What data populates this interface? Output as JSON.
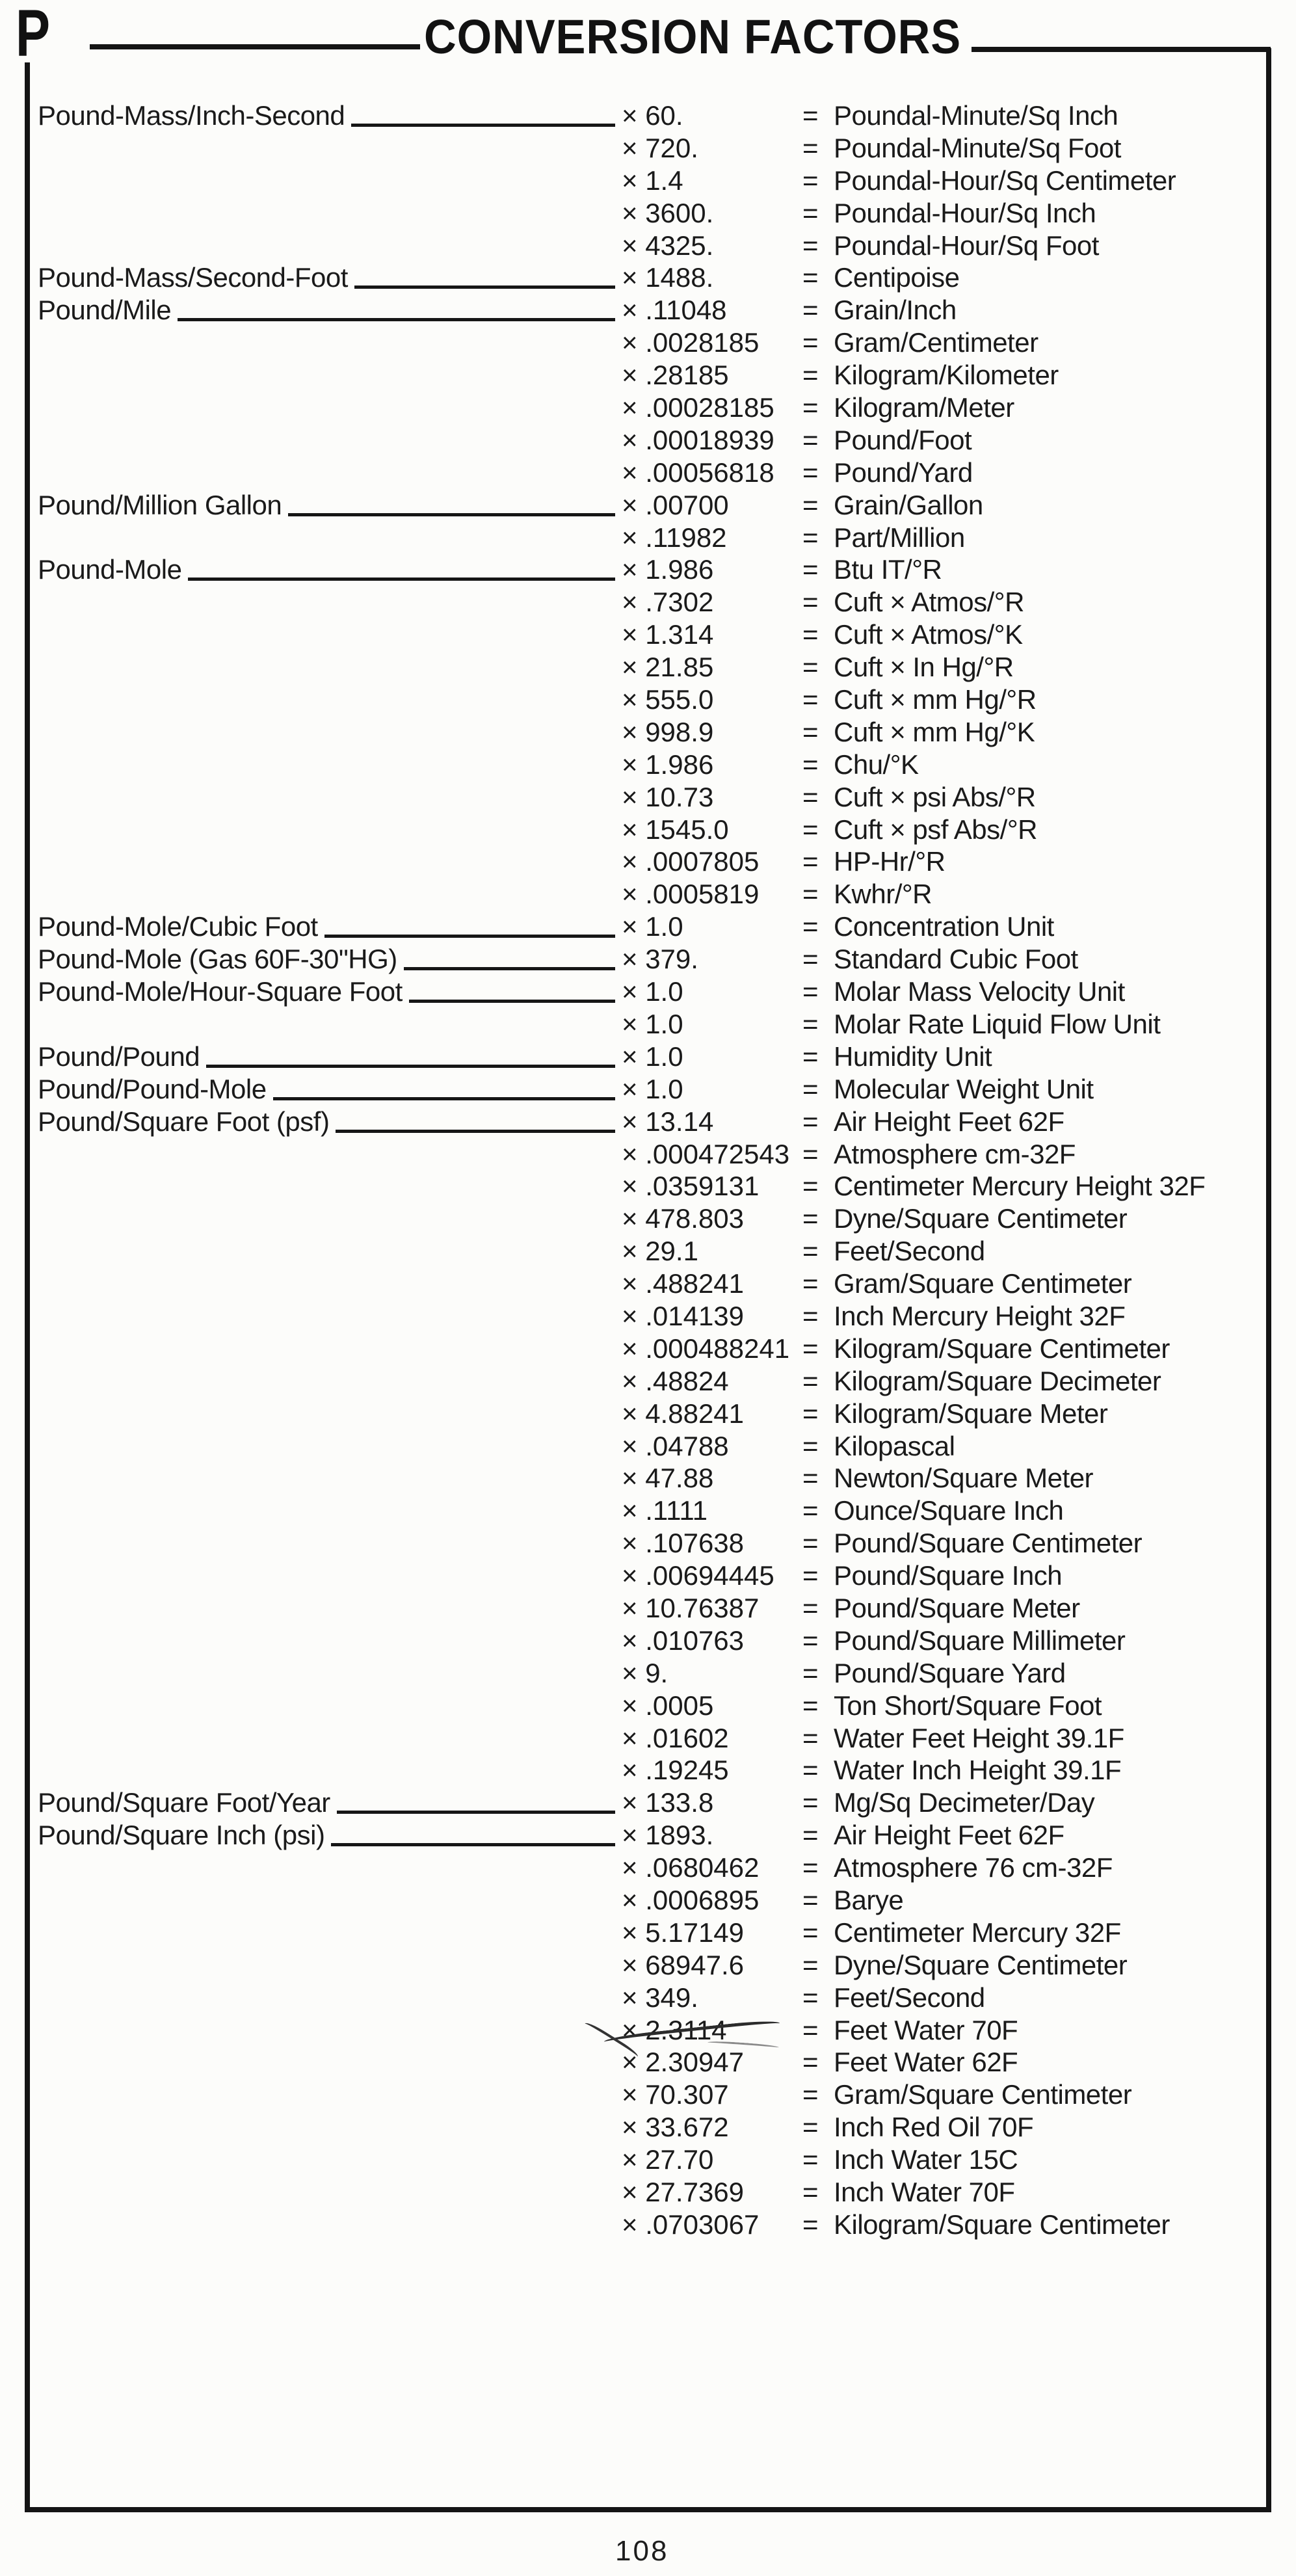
{
  "page": {
    "tab_letter": "P",
    "title": "CONVERSION FACTORS",
    "page_number": "108"
  },
  "colors": {
    "ink": "#1a1a1a",
    "paper": "#fcfcfa"
  },
  "table": {
    "multiply_symbol": "×",
    "equals_symbol": "=",
    "rows": [
      {
        "label": "Pound-Mass/Inch-Second",
        "factor": "60.",
        "result": "Poundal-Minute/Sq Inch"
      },
      {
        "label": "",
        "factor": "720.",
        "result": "Poundal-Minute/Sq Foot"
      },
      {
        "label": "",
        "factor": "1.4",
        "result": "Poundal-Hour/Sq Centimeter"
      },
      {
        "label": "",
        "factor": "3600.",
        "result": "Poundal-Hour/Sq Inch"
      },
      {
        "label": "",
        "factor": "4325.",
        "result": "Poundal-Hour/Sq Foot"
      },
      {
        "label": "Pound-Mass/Second-Foot",
        "factor": "1488.",
        "result": "Centipoise"
      },
      {
        "label": "Pound/Mile",
        "factor": ".11048",
        "result": "Grain/Inch"
      },
      {
        "label": "",
        "factor": ".0028185",
        "result": "Gram/Centimeter"
      },
      {
        "label": "",
        "factor": ".28185",
        "result": "Kilogram/Kilometer"
      },
      {
        "label": "",
        "factor": ".00028185",
        "result": "Kilogram/Meter"
      },
      {
        "label": "",
        "factor": ".00018939",
        "result": "Pound/Foot"
      },
      {
        "label": "",
        "factor": ".00056818",
        "result": "Pound/Yard"
      },
      {
        "label": "Pound/Million Gallon",
        "factor": ".00700",
        "result": "Grain/Gallon"
      },
      {
        "label": "",
        "factor": ".11982",
        "result": "Part/Million"
      },
      {
        "label": "Pound-Mole",
        "factor": "1.986",
        "result": "Btu IT/°R"
      },
      {
        "label": "",
        "factor": ".7302",
        "result": "Cuft × Atmos/°R"
      },
      {
        "label": "",
        "factor": "1.314",
        "result": "Cuft × Atmos/°K"
      },
      {
        "label": "",
        "factor": "21.85",
        "result": "Cuft × In Hg/°R"
      },
      {
        "label": "",
        "factor": "555.0",
        "result": "Cuft × mm Hg/°R"
      },
      {
        "label": "",
        "factor": "998.9",
        "result": "Cuft × mm Hg/°K"
      },
      {
        "label": "",
        "factor": "1.986",
        "result": "Chu/°K"
      },
      {
        "label": "",
        "factor": "10.73",
        "result": "Cuft × psi Abs/°R"
      },
      {
        "label": "",
        "factor": "1545.0",
        "result": "Cuft × psf Abs/°R"
      },
      {
        "label": "",
        "factor": ".0007805",
        "result": "HP-Hr/°R"
      },
      {
        "label": "",
        "factor": ".0005819",
        "result": "Kwhr/°R"
      },
      {
        "label": "Pound-Mole/Cubic Foot",
        "factor": "1.0",
        "result": "Concentration Unit"
      },
      {
        "label": "Pound-Mole (Gas 60F-30\"HG)",
        "factor": "379.",
        "result": "Standard Cubic Foot"
      },
      {
        "label": "Pound-Mole/Hour-Square Foot",
        "factor": "1.0",
        "result": "Molar Mass Velocity Unit"
      },
      {
        "label": "",
        "factor": "1.0",
        "result": "Molar Rate Liquid Flow Unit"
      },
      {
        "label": "Pound/Pound",
        "factor": "1.0",
        "result": "Humidity Unit"
      },
      {
        "label": "Pound/Pound-Mole",
        "factor": "1.0",
        "result": "Molecular Weight Unit"
      },
      {
        "label": "Pound/Square Foot (psf)",
        "factor": "13.14",
        "result": "Air Height Feet 62F"
      },
      {
        "label": "",
        "factor": ".000472543",
        "result": "Atmosphere cm-32F"
      },
      {
        "label": "",
        "factor": ".0359131",
        "result": "Centimeter Mercury Height 32F"
      },
      {
        "label": "",
        "factor": "478.803",
        "result": "Dyne/Square Centimeter"
      },
      {
        "label": "",
        "factor": "29.1",
        "result": "Feet/Second"
      },
      {
        "label": "",
        "factor": ".488241",
        "result": "Gram/Square Centimeter"
      },
      {
        "label": "",
        "factor": ".014139",
        "result": "Inch Mercury Height 32F"
      },
      {
        "label": "",
        "factor": ".000488241",
        "result": "Kilogram/Square Centimeter"
      },
      {
        "label": "",
        "factor": ".48824",
        "result": "Kilogram/Square Decimeter"
      },
      {
        "label": "",
        "factor": "4.88241",
        "result": "Kilogram/Square Meter"
      },
      {
        "label": "",
        "factor": ".04788",
        "result": "Kilopascal"
      },
      {
        "label": "",
        "factor": "47.88",
        "result": "Newton/Square Meter"
      },
      {
        "label": "",
        "factor": ".1111",
        "result": "Ounce/Square Inch"
      },
      {
        "label": "",
        "factor": ".107638",
        "result": "Pound/Square Centimeter"
      },
      {
        "label": "",
        "factor": ".00694445",
        "result": "Pound/Square Inch"
      },
      {
        "label": "",
        "factor": "10.76387",
        "result": "Pound/Square Meter"
      },
      {
        "label": "",
        "factor": ".010763",
        "result": "Pound/Square Millimeter"
      },
      {
        "label": "",
        "factor": "9.",
        "result": "Pound/Square Yard"
      },
      {
        "label": "",
        "factor": ".0005",
        "result": "Ton Short/Square Foot"
      },
      {
        "label": "",
        "factor": ".01602",
        "result": "Water Feet Height 39.1F"
      },
      {
        "label": "",
        "factor": ".19245",
        "result": "Water Inch Height 39.1F"
      },
      {
        "label": "Pound/Square Foot/Year",
        "factor": "133.8",
        "result": "Mg/Sq Decimeter/Day"
      },
      {
        "label": "Pound/Square Inch (psi)",
        "factor": "1893.",
        "result": "Air Height Feet 62F"
      },
      {
        "label": "",
        "factor": ".0680462",
        "result": "Atmosphere 76 cm-32F"
      },
      {
        "label": "",
        "factor": ".0006895",
        "result": "Barye"
      },
      {
        "label": "",
        "factor": "5.17149",
        "result": "Centimeter Mercury 32F"
      },
      {
        "label": "",
        "factor": "68947.6",
        "result": "Dyne/Square Centimeter"
      },
      {
        "label": "",
        "factor": "349.",
        "result": "Feet/Second"
      },
      {
        "label": "",
        "factor": "2.3114",
        "result": "Feet Water 70F",
        "struck": true
      },
      {
        "label": "",
        "factor": "2.30947",
        "result": "Feet Water 62F"
      },
      {
        "label": "",
        "factor": "70.307",
        "result": "Gram/Square Centimeter"
      },
      {
        "label": "",
        "factor": "33.672",
        "result": "Inch Red Oil 70F"
      },
      {
        "label": "",
        "factor": "27.70",
        "result": "Inch Water 15C"
      },
      {
        "label": "",
        "factor": "27.7369",
        "result": "Inch Water 70F"
      },
      {
        "label": "",
        "factor": ".0703067",
        "result": "Kilogram/Square Centimeter"
      }
    ]
  }
}
